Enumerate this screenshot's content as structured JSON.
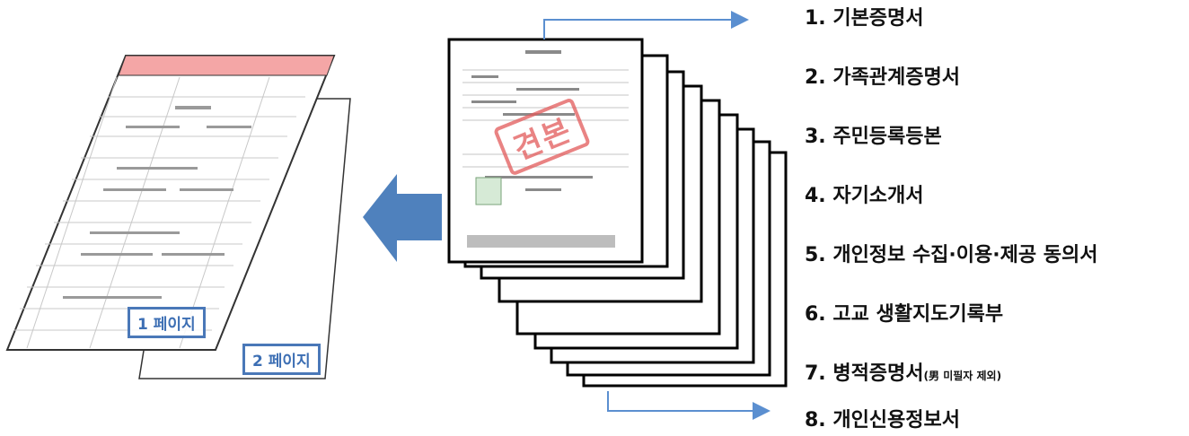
{
  "documents": [
    {
      "text": "1. 기본증명서"
    },
    {
      "text": "2. 가족관계증명서"
    },
    {
      "text": "3. 주민등록등본"
    },
    {
      "text": "4. 자기소개서"
    },
    {
      "text": "5. 개인정보 수집·이용·제공 동의서"
    },
    {
      "text": "6. 고교 생활지도기록부"
    },
    {
      "text": "7. 병적증명서",
      "note": "(男 미필자 제외)"
    },
    {
      "text": "8. 개인신용정보서"
    }
  ],
  "stamp": "견본",
  "page_badges": [
    "1 페이지",
    "2 페이지"
  ],
  "colors": {
    "arrow_blue": "#4f81bd",
    "connector_blue": "#5b8fd0",
    "pad_header_pink": "#f4a6a6",
    "stamp_red": "#e25a5a"
  }
}
